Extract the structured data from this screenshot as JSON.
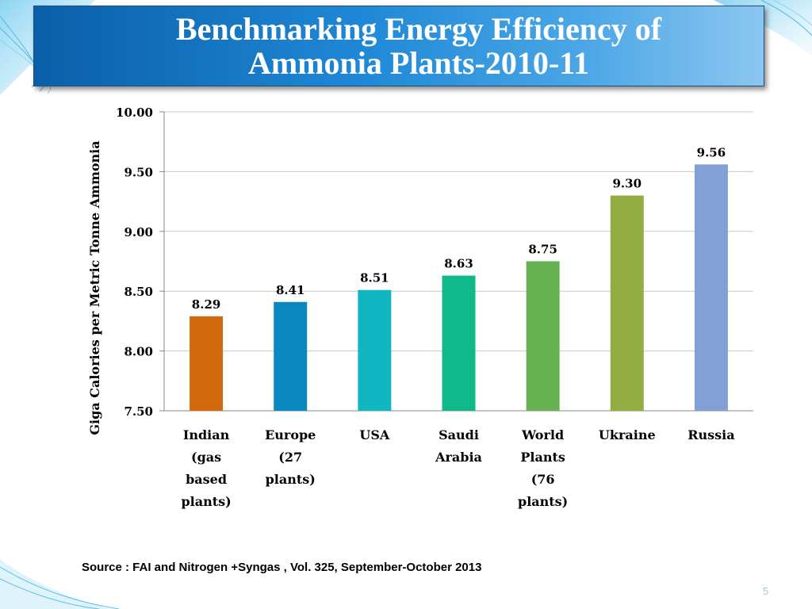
{
  "slide": {
    "title": "Benchmarking Energy Efficiency of Ammonia Plants-2010-11",
    "source": "Source : FAI and Nitrogen +Syngas , Vol. 325, September-October 2013",
    "page_number": "5"
  },
  "chart_data": {
    "type": "bar",
    "categories": [
      "Indian (gas based plants)",
      "Europe (27 plants)",
      "USA",
      "Saudi Arabia",
      "World Plants (76 plants)",
      "Ukraine",
      "Russia"
    ],
    "category_lines": [
      [
        "Indian",
        "(gas",
        "based",
        "plants)"
      ],
      [
        "Europe",
        "(27",
        "plants)"
      ],
      [
        "USA"
      ],
      [
        "Saudi",
        "Arabia"
      ],
      [
        "World",
        "Plants",
        "(76",
        "plants)"
      ],
      [
        "Ukraine"
      ],
      [
        "Russia"
      ]
    ],
    "values": [
      8.29,
      8.41,
      8.51,
      8.63,
      8.75,
      9.3,
      9.56
    ],
    "data_labels": [
      "8.29",
      "8.41",
      "8.51",
      "8.63",
      "8.75",
      "9.30",
      "9.56"
    ],
    "colors": [
      "#d2690d",
      "#0a88c0",
      "#10b6c0",
      "#10b88a",
      "#66b253",
      "#94ad42",
      "#829fd6"
    ],
    "title": "",
    "xlabel": "",
    "ylabel": "Giga Calories per Metric Tonne Ammonia",
    "ylim": [
      7.5,
      10.0
    ],
    "yticks": [
      7.5,
      8.0,
      8.5,
      9.0,
      9.5,
      10.0
    ],
    "ytick_labels": [
      "7.50",
      "8.00",
      "8.50",
      "9.00",
      "9.50",
      "10.00"
    ],
    "grid": true,
    "legend": "none"
  }
}
